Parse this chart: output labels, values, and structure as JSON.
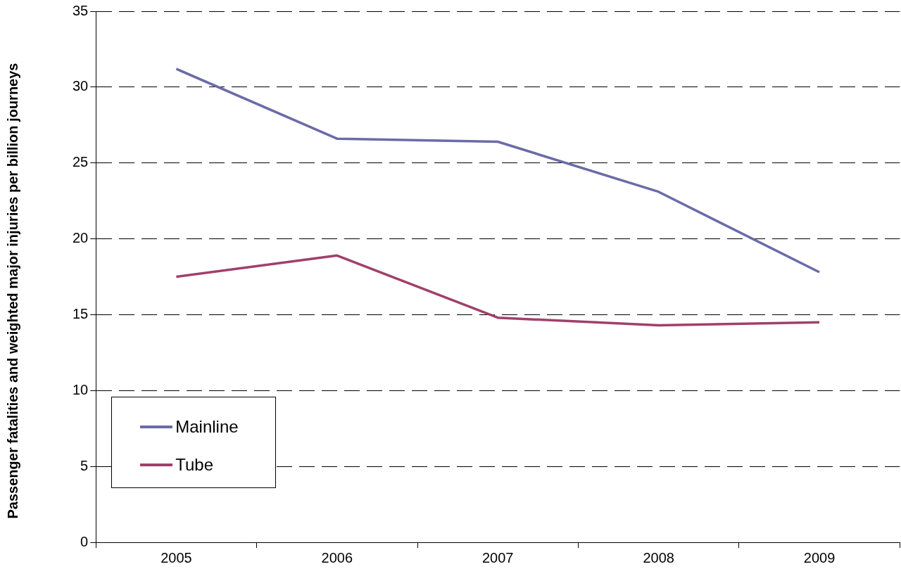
{
  "chart_data": {
    "type": "line",
    "ylabel": "Passenger fatalities and weighted major injuries per billion journeys",
    "categories": [
      "2005",
      "2006",
      "2007",
      "2008",
      "2009"
    ],
    "series": [
      {
        "name": "Mainline",
        "color": "#6b6ba8",
        "values": [
          31.2,
          26.6,
          26.4,
          23.1,
          17.8
        ]
      },
      {
        "name": "Tube",
        "color": "#a0406a",
        "values": [
          17.5,
          18.9,
          14.8,
          14.3,
          14.5
        ]
      }
    ],
    "ylim": [
      0,
      35
    ],
    "yticks": [
      0,
      5,
      10,
      15,
      20,
      25,
      30,
      35
    ],
    "grid": "y",
    "legend": "bottom left",
    "marker": "none",
    "line_style": "solid"
  }
}
